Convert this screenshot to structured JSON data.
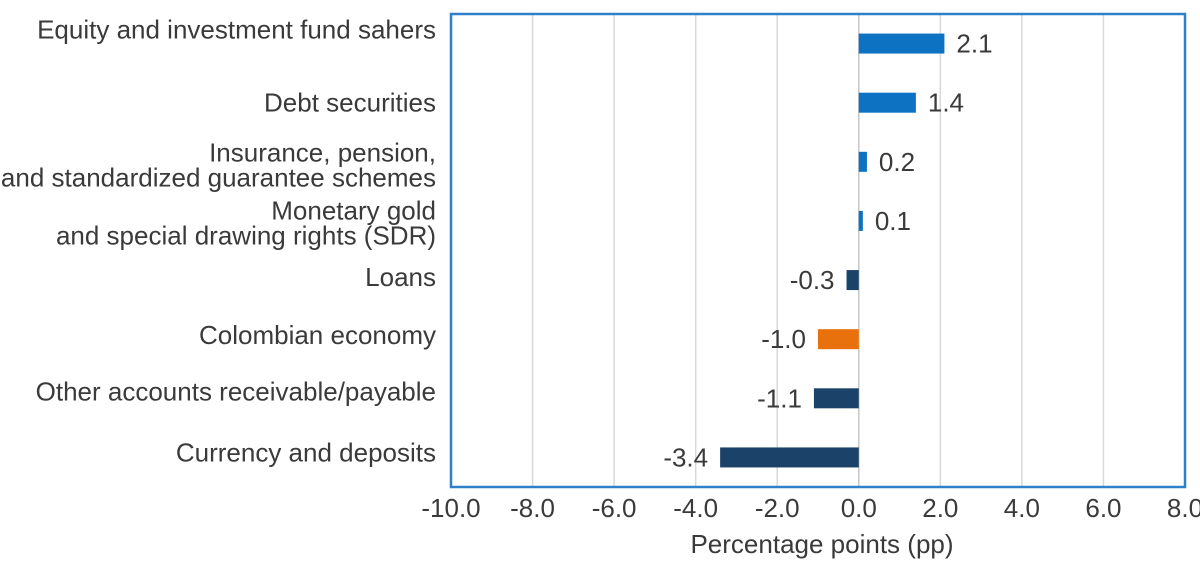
{
  "chart_data": {
    "type": "bar",
    "orientation": "horizontal",
    "xlabel": "Percentage points (pp)",
    "categories": [
      "Equity and investment fund sahers",
      "Debt securities",
      "Insurance, pension,\nand standardized guarantee schemes",
      "Monetary gold\nand special drawing rights (SDR)",
      "Loans",
      "Colombian economy",
      "Other accounts receivable/payable",
      "Currency and deposits"
    ],
    "values": [
      2.1,
      1.4,
      0.2,
      0.1,
      -0.3,
      -1.0,
      -1.1,
      -3.4
    ],
    "value_labels": [
      "2.1",
      "1.4",
      "0.2",
      "0.1",
      "-0.3",
      "-1.0",
      "-1.1",
      "-3.4"
    ],
    "bar_roles": [
      "positive",
      "positive",
      "positive",
      "positive",
      "negative",
      "highlight",
      "negative",
      "negative"
    ],
    "xlim": [
      -10,
      8
    ],
    "xticks": [
      -10,
      -8,
      -6,
      -4,
      -2,
      0,
      2,
      4,
      6,
      8
    ],
    "xtick_labels": [
      "-10.0",
      "-8.0",
      "-6.0",
      "-4.0",
      "-2.0",
      "0.0",
      "2.0",
      "4.0",
      "6.0",
      "8.0"
    ],
    "grid": "vertical",
    "legend": "none",
    "colors": {
      "positive_bar": "#0e72c2",
      "negative_bar": "#1b4268",
      "highlight_bar": "#e8710e",
      "frame": "#2e80c8",
      "gridline": "#d8d8d8",
      "zero_gridline": "#c6c6c6",
      "text": "#3a3a3a"
    }
  }
}
